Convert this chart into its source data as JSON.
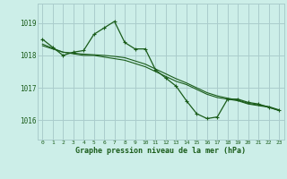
{
  "bg_color": "#cceee8",
  "grid_color": "#aacccc",
  "line_color": "#1a5c1a",
  "title": "Graphe pression niveau de la mer (hPa)",
  "ylabel_ticks": [
    1016,
    1017,
    1018,
    1019
  ],
  "xlim": [
    -0.5,
    23.5
  ],
  "ylim": [
    1015.4,
    1019.6
  ],
  "series1_x": [
    0,
    1,
    2,
    3,
    4,
    5,
    6,
    7,
    8,
    9,
    10,
    11,
    12,
    13,
    14,
    15,
    16,
    17,
    18,
    19,
    20,
    21,
    22,
    23
  ],
  "series1_y": [
    1018.5,
    1018.25,
    1018.0,
    1018.1,
    1018.15,
    1018.65,
    1018.85,
    1019.05,
    1018.4,
    1018.2,
    1018.2,
    1017.55,
    1017.3,
    1017.05,
    1016.6,
    1016.2,
    1016.05,
    1016.1,
    1016.65,
    1016.65,
    1016.55,
    1016.5,
    1016.4,
    1016.3
  ],
  "series2_x": [
    0,
    1,
    2,
    3,
    4,
    5,
    6,
    7,
    8,
    9,
    10,
    11,
    12,
    13,
    14,
    15,
    16,
    17,
    18,
    19,
    20,
    21,
    22,
    23
  ],
  "series2_y": [
    1018.3,
    1018.2,
    1018.1,
    1018.05,
    1018.0,
    1018.0,
    1017.95,
    1017.9,
    1017.85,
    1017.75,
    1017.65,
    1017.5,
    1017.35,
    1017.2,
    1017.1,
    1016.95,
    1016.8,
    1016.7,
    1016.65,
    1016.6,
    1016.5,
    1016.45,
    1016.4,
    1016.3
  ],
  "series3_x": [
    0,
    1,
    2,
    3,
    4,
    5,
    6,
    7,
    8,
    9,
    10,
    11,
    12,
    13,
    14,
    15,
    16,
    17,
    18,
    19,
    20,
    21,
    22,
    23
  ],
  "series3_y": [
    1018.35,
    1018.22,
    1018.1,
    1018.07,
    1018.04,
    1018.02,
    1018.0,
    1017.97,
    1017.93,
    1017.83,
    1017.73,
    1017.58,
    1017.43,
    1017.28,
    1017.15,
    1017.0,
    1016.85,
    1016.75,
    1016.68,
    1016.62,
    1016.52,
    1016.47,
    1016.42,
    1016.32
  ]
}
